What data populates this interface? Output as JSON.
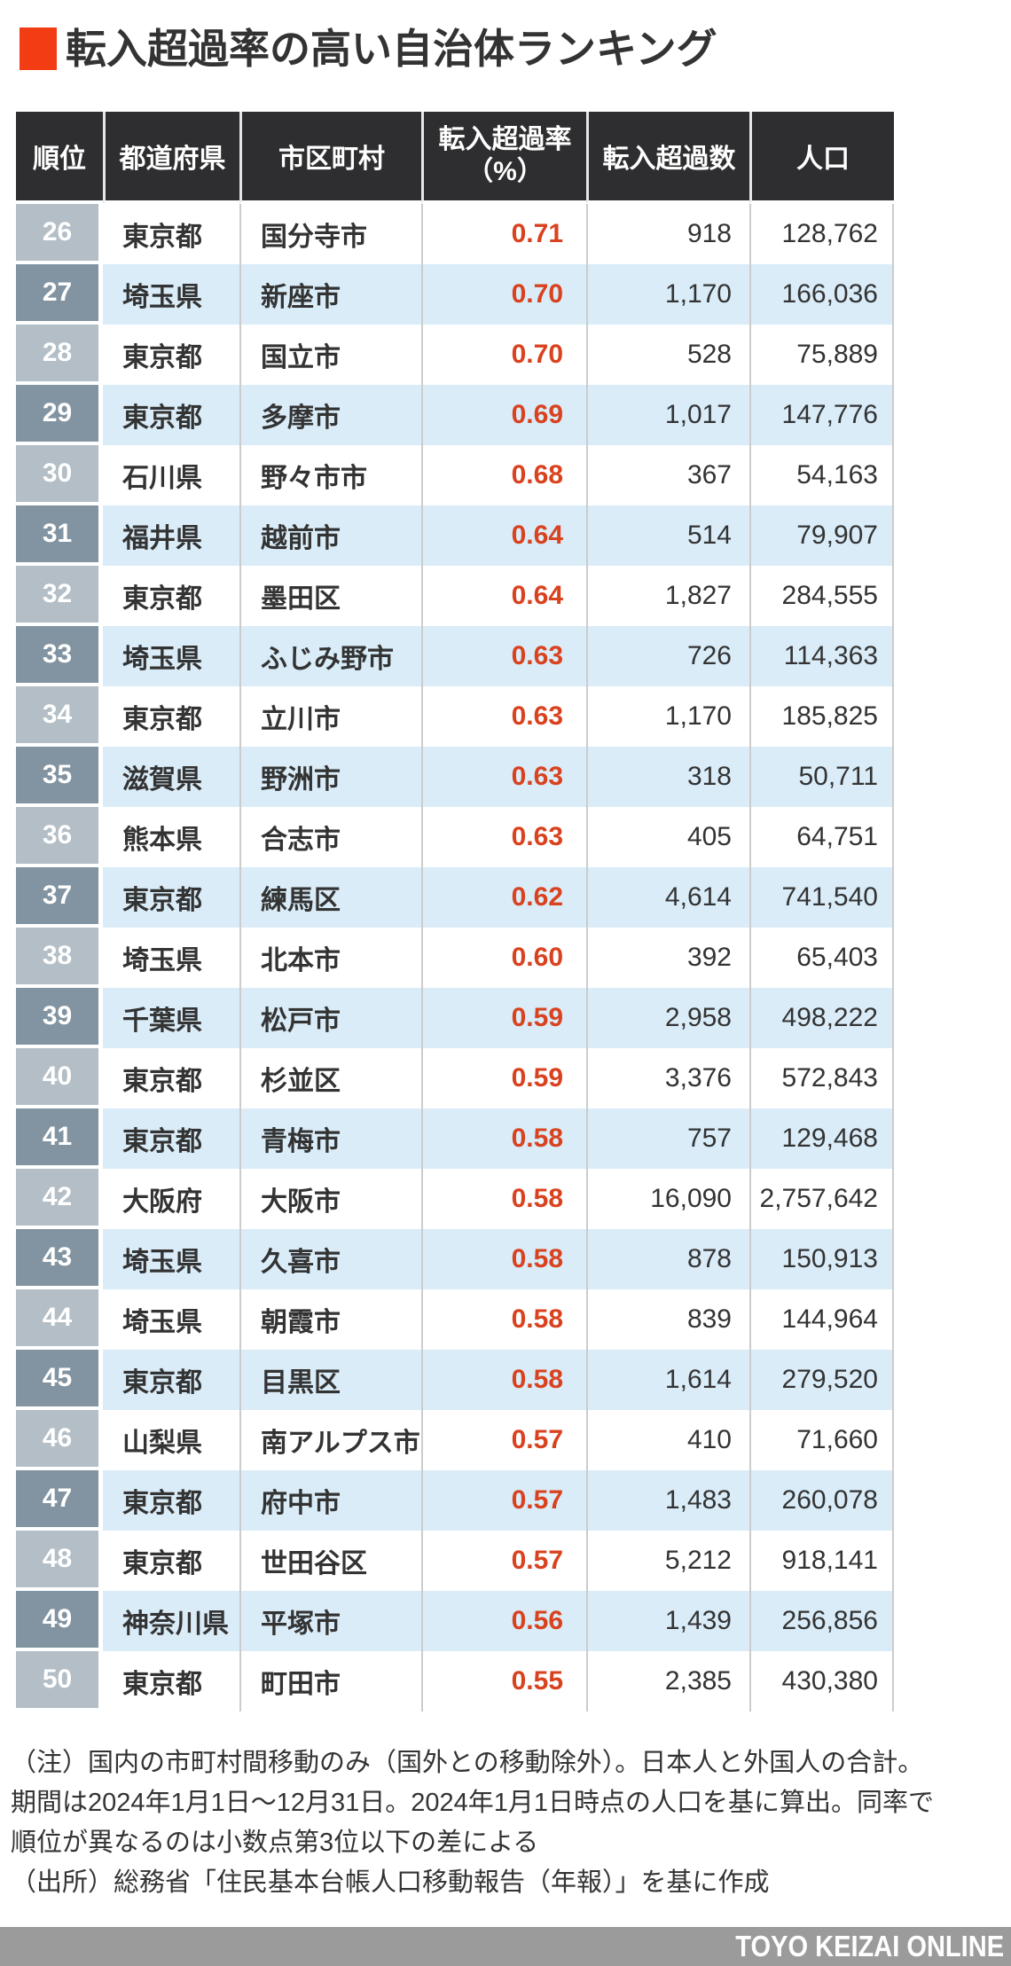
{
  "title": "転入超過率の高い自治体ランキング",
  "colors": {
    "accent": "#f23c14",
    "header_bg": "#2e2e30",
    "row_alt": "#d9ecf8",
    "rank_light": "#b3bec6",
    "rank_dark": "#8294a1",
    "rate_red": "#d9421f",
    "bar_bg": "#9b9b9b"
  },
  "table": {
    "headers": {
      "rank": "順位",
      "prefecture": "都道府県",
      "municipality": "市区町村",
      "rate_line1": "転入超過率",
      "rate_line2": "（%）",
      "net": "転入超過数",
      "population": "人口"
    },
    "rows": [
      {
        "rank": "26",
        "prefecture": "東京都",
        "municipality": "国分寺市",
        "rate": "0.71",
        "net": "918",
        "population": "128,762"
      },
      {
        "rank": "27",
        "prefecture": "埼玉県",
        "municipality": "新座市",
        "rate": "0.70",
        "net": "1,170",
        "population": "166,036"
      },
      {
        "rank": "28",
        "prefecture": "東京都",
        "municipality": "国立市",
        "rate": "0.70",
        "net": "528",
        "population": "75,889"
      },
      {
        "rank": "29",
        "prefecture": "東京都",
        "municipality": "多摩市",
        "rate": "0.69",
        "net": "1,017",
        "population": "147,776"
      },
      {
        "rank": "30",
        "prefecture": "石川県",
        "municipality": "野々市市",
        "rate": "0.68",
        "net": "367",
        "population": "54,163"
      },
      {
        "rank": "31",
        "prefecture": "福井県",
        "municipality": "越前市",
        "rate": "0.64",
        "net": "514",
        "population": "79,907"
      },
      {
        "rank": "32",
        "prefecture": "東京都",
        "municipality": "墨田区",
        "rate": "0.64",
        "net": "1,827",
        "population": "284,555"
      },
      {
        "rank": "33",
        "prefecture": "埼玉県",
        "municipality": "ふじみ野市",
        "rate": "0.63",
        "net": "726",
        "population": "114,363"
      },
      {
        "rank": "34",
        "prefecture": "東京都",
        "municipality": "立川市",
        "rate": "0.63",
        "net": "1,170",
        "population": "185,825"
      },
      {
        "rank": "35",
        "prefecture": "滋賀県",
        "municipality": "野洲市",
        "rate": "0.63",
        "net": "318",
        "population": "50,711"
      },
      {
        "rank": "36",
        "prefecture": "熊本県",
        "municipality": "合志市",
        "rate": "0.63",
        "net": "405",
        "population": "64,751"
      },
      {
        "rank": "37",
        "prefecture": "東京都",
        "municipality": "練馬区",
        "rate": "0.62",
        "net": "4,614",
        "population": "741,540"
      },
      {
        "rank": "38",
        "prefecture": "埼玉県",
        "municipality": "北本市",
        "rate": "0.60",
        "net": "392",
        "population": "65,403"
      },
      {
        "rank": "39",
        "prefecture": "千葉県",
        "municipality": "松戸市",
        "rate": "0.59",
        "net": "2,958",
        "population": "498,222"
      },
      {
        "rank": "40",
        "prefecture": "東京都",
        "municipality": "杉並区",
        "rate": "0.59",
        "net": "3,376",
        "population": "572,843"
      },
      {
        "rank": "41",
        "prefecture": "東京都",
        "municipality": "青梅市",
        "rate": "0.58",
        "net": "757",
        "population": "129,468"
      },
      {
        "rank": "42",
        "prefecture": "大阪府",
        "municipality": "大阪市",
        "rate": "0.58",
        "net": "16,090",
        "population": "2,757,642"
      },
      {
        "rank": "43",
        "prefecture": "埼玉県",
        "municipality": "久喜市",
        "rate": "0.58",
        "net": "878",
        "population": "150,913"
      },
      {
        "rank": "44",
        "prefecture": "埼玉県",
        "municipality": "朝霞市",
        "rate": "0.58",
        "net": "839",
        "population": "144,964"
      },
      {
        "rank": "45",
        "prefecture": "東京都",
        "municipality": "目黒区",
        "rate": "0.58",
        "net": "1,614",
        "population": "279,520"
      },
      {
        "rank": "46",
        "prefecture": "山梨県",
        "municipality": "南アルプス市",
        "rate": "0.57",
        "net": "410",
        "population": "71,660"
      },
      {
        "rank": "47",
        "prefecture": "東京都",
        "municipality": "府中市",
        "rate": "0.57",
        "net": "1,483",
        "population": "260,078"
      },
      {
        "rank": "48",
        "prefecture": "東京都",
        "municipality": "世田谷区",
        "rate": "0.57",
        "net": "5,212",
        "population": "918,141"
      },
      {
        "rank": "49",
        "prefecture": "神奈川県",
        "municipality": "平塚市",
        "rate": "0.56",
        "net": "1,439",
        "population": "256,856"
      },
      {
        "rank": "50",
        "prefecture": "東京都",
        "municipality": "町田市",
        "rate": "0.55",
        "net": "2,385",
        "population": "430,380"
      }
    ]
  },
  "notes": {
    "lines": [
      "（注）国内の市町村間移動のみ（国外との移動除外）。日本人と外国人の合計。",
      "期間は2024年1月1日〜12月31日。2024年1月1日時点の人口を基に算出。同率で",
      "順位が異なるのは小数点第3位以下の差による"
    ],
    "source": "（出所）総務省「住民基本台帳人口移動報告（年報）」を基に作成"
  },
  "footer": {
    "brand": "TOYO KEIZAI ONLINE"
  },
  "chart_data": {
    "type": "table",
    "title": "転入超過率の高い自治体ランキング",
    "columns": [
      "順位",
      "都道府県",
      "市区町村",
      "転入超過率（%）",
      "転入超過数",
      "人口"
    ],
    "rows": [
      [
        26,
        "東京都",
        "国分寺市",
        0.71,
        918,
        128762
      ],
      [
        27,
        "埼玉県",
        "新座市",
        0.7,
        1170,
        166036
      ],
      [
        28,
        "東京都",
        "国立市",
        0.7,
        528,
        75889
      ],
      [
        29,
        "東京都",
        "多摩市",
        0.69,
        1017,
        147776
      ],
      [
        30,
        "石川県",
        "野々市市",
        0.68,
        367,
        54163
      ],
      [
        31,
        "福井県",
        "越前市",
        0.64,
        514,
        79907
      ],
      [
        32,
        "東京都",
        "墨田区",
        0.64,
        1827,
        284555
      ],
      [
        33,
        "埼玉県",
        "ふじみ野市",
        0.63,
        726,
        114363
      ],
      [
        34,
        "東京都",
        "立川市",
        0.63,
        1170,
        185825
      ],
      [
        35,
        "滋賀県",
        "野洲市",
        0.63,
        318,
        50711
      ],
      [
        36,
        "熊本県",
        "合志市",
        0.63,
        405,
        64751
      ],
      [
        37,
        "東京都",
        "練馬区",
        0.62,
        4614,
        741540
      ],
      [
        38,
        "埼玉県",
        "北本市",
        0.6,
        392,
        65403
      ],
      [
        39,
        "千葉県",
        "松戸市",
        0.59,
        2958,
        498222
      ],
      [
        40,
        "東京都",
        "杉並区",
        0.59,
        3376,
        572843
      ],
      [
        41,
        "東京都",
        "青梅市",
        0.58,
        757,
        129468
      ],
      [
        42,
        "大阪府",
        "大阪市",
        0.58,
        16090,
        2757642
      ],
      [
        43,
        "埼玉県",
        "久喜市",
        0.58,
        878,
        150913
      ],
      [
        44,
        "埼玉県",
        "朝霞市",
        0.58,
        839,
        144964
      ],
      [
        45,
        "東京都",
        "目黒区",
        0.58,
        1614,
        279520
      ],
      [
        46,
        "山梨県",
        "南アルプス市",
        0.57,
        410,
        71660
      ],
      [
        47,
        "東京都",
        "府中市",
        0.57,
        1483,
        260078
      ],
      [
        48,
        "東京都",
        "世田谷区",
        0.57,
        5212,
        918141
      ],
      [
        49,
        "神奈川県",
        "平塚市",
        0.56,
        1439,
        256856
      ],
      [
        50,
        "東京都",
        "町田市",
        0.55,
        2385,
        430380
      ]
    ]
  }
}
